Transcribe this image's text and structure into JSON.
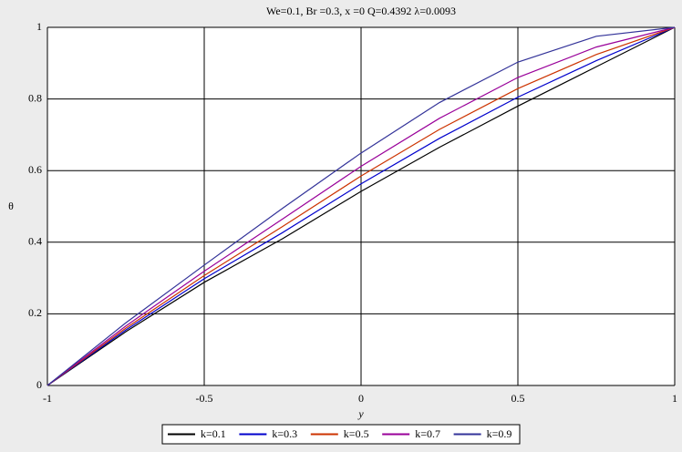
{
  "chart_data": {
    "type": "line",
    "title": "We=0.1, Br =0.3, x =0 Q=0.4392 λ=0.0093",
    "x_label": "y",
    "y_label": "θ",
    "x": [
      -1,
      -0.75,
      -0.5,
      -0.25,
      0,
      0.25,
      0.5,
      0.75,
      1
    ],
    "series": [
      {
        "name": "k=0.1",
        "color": "#000000",
        "values": [
          0,
          0.15,
          0.288,
          0.41,
          0.542,
          0.665,
          0.78,
          0.89,
          1
        ]
      },
      {
        "name": "k=0.3",
        "color": "#0000cc",
        "values": [
          0,
          0.155,
          0.298,
          0.427,
          0.563,
          0.69,
          0.805,
          0.907,
          1
        ]
      },
      {
        "name": "k=0.5",
        "color": "#cc3300",
        "values": [
          0,
          0.16,
          0.307,
          0.444,
          0.585,
          0.715,
          0.829,
          0.924,
          1
        ]
      },
      {
        "name": "k=0.7",
        "color": "#990099",
        "values": [
          0,
          0.166,
          0.319,
          0.465,
          0.612,
          0.746,
          0.86,
          0.945,
          1
        ]
      },
      {
        "name": "k=0.9",
        "color": "#333399",
        "values": [
          0,
          0.175,
          0.336,
          0.495,
          0.649,
          0.79,
          0.903,
          0.975,
          1
        ]
      }
    ],
    "xlim": [
      -1,
      1
    ],
    "ylim": [
      0,
      1
    ],
    "xticks": [
      -1,
      -0.5,
      0,
      0.5,
      1
    ],
    "yticks": [
      0,
      0.2,
      0.4,
      0.6,
      0.8,
      1
    ],
    "grid": true,
    "legend": "bottom"
  }
}
